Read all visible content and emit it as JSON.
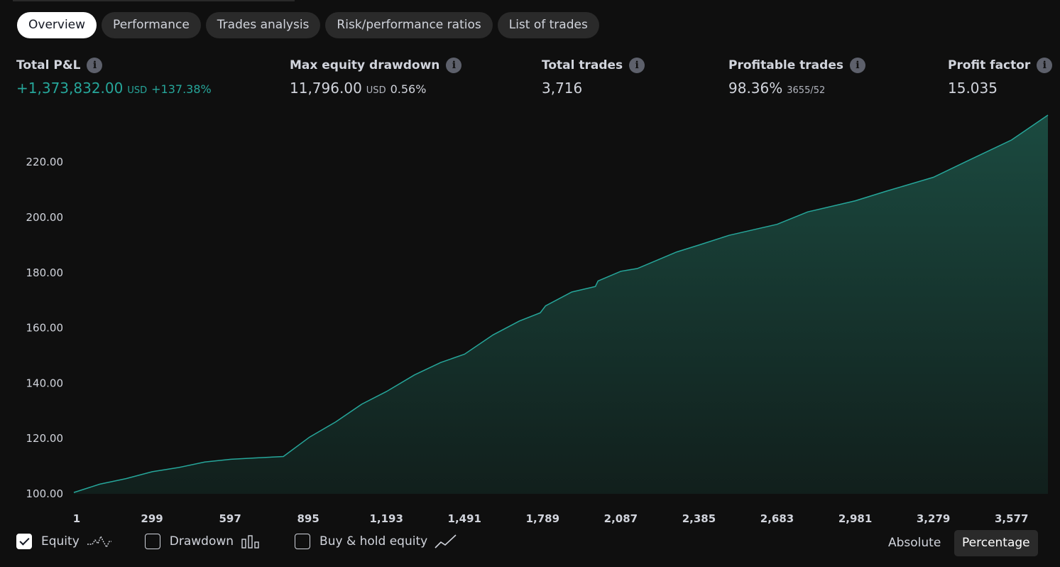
{
  "tabs": [
    {
      "label": "Overview",
      "active": true
    },
    {
      "label": "Performance"
    },
    {
      "label": "Trades analysis"
    },
    {
      "label": "Risk/performance ratios"
    },
    {
      "label": "List of trades"
    }
  ],
  "stats": {
    "total_pnl": {
      "label": "Total P&L",
      "value": "+1,373,832.00",
      "currency": "USD",
      "percent": "+137.38%"
    },
    "max_drawdown": {
      "label": "Max equity drawdown",
      "value": "11,796.00",
      "currency": "USD",
      "percent": "0.56%"
    },
    "total_trades": {
      "label": "Total trades",
      "value": "3,716"
    },
    "profitable_trades": {
      "label": "Profitable trades",
      "value": "98.36%",
      "ratio": "3655/52"
    },
    "profit_factor": {
      "label": "Profit factor",
      "value": "15.035"
    }
  },
  "info_glyph": "i",
  "colors": {
    "accent": "#26a69a",
    "fill_top": "#1b4a40",
    "fill_bottom": "#111f1c",
    "background": "#0f0f0f"
  },
  "chart_data": {
    "type": "area",
    "series": [
      {
        "x": [
          1,
          100,
          200,
          300,
          400,
          500,
          600,
          700,
          800,
          900,
          1000,
          1100,
          1193,
          1300,
          1400,
          1491,
          1600,
          1700,
          1780,
          1800,
          1900,
          1990,
          2000,
          2087,
          2150,
          2300,
          2385,
          2500,
          2683,
          2800,
          2981,
          3100,
          3279,
          3400,
          3577,
          3716
        ],
        "y": [
          100.5,
          103.5,
          105.5,
          108,
          109.5,
          111.5,
          112.5,
          113,
          113.5,
          120.5,
          126,
          132.5,
          137,
          143,
          147.5,
          150.5,
          157.5,
          162.5,
          165.5,
          168,
          173,
          175,
          177,
          180.5,
          181.5,
          187.5,
          190,
          193.5,
          197.5,
          202,
          206,
          209.5,
          214.5,
          220,
          228,
          237
        ]
      }
    ],
    "xticks": [
      "1",
      "299",
      "597",
      "895",
      "1,193",
      "1,491",
      "1,789",
      "2,087",
      "2,385",
      "2,683",
      "2,981",
      "3,279",
      "3,577"
    ],
    "xtick_values": [
      1,
      299,
      597,
      895,
      1193,
      1491,
      1789,
      2087,
      2385,
      2683,
      2981,
      3279,
      3577
    ],
    "yticks": [
      "100.00",
      "120.00",
      "140.00",
      "160.00",
      "180.00",
      "200.00",
      "220.00"
    ],
    "ytick_values": [
      100,
      120,
      140,
      160,
      180,
      200,
      220
    ],
    "xlim": [
      1,
      3716
    ],
    "ylim": [
      100,
      237
    ],
    "grid": false
  },
  "legend": {
    "equity": {
      "label": "Equity",
      "checked": true
    },
    "drawdown": {
      "label": "Drawdown",
      "checked": false
    },
    "buy_hold": {
      "label": "Buy & hold equity",
      "checked": false
    }
  },
  "modes": {
    "absolute": "Absolute",
    "percentage": "Percentage"
  }
}
